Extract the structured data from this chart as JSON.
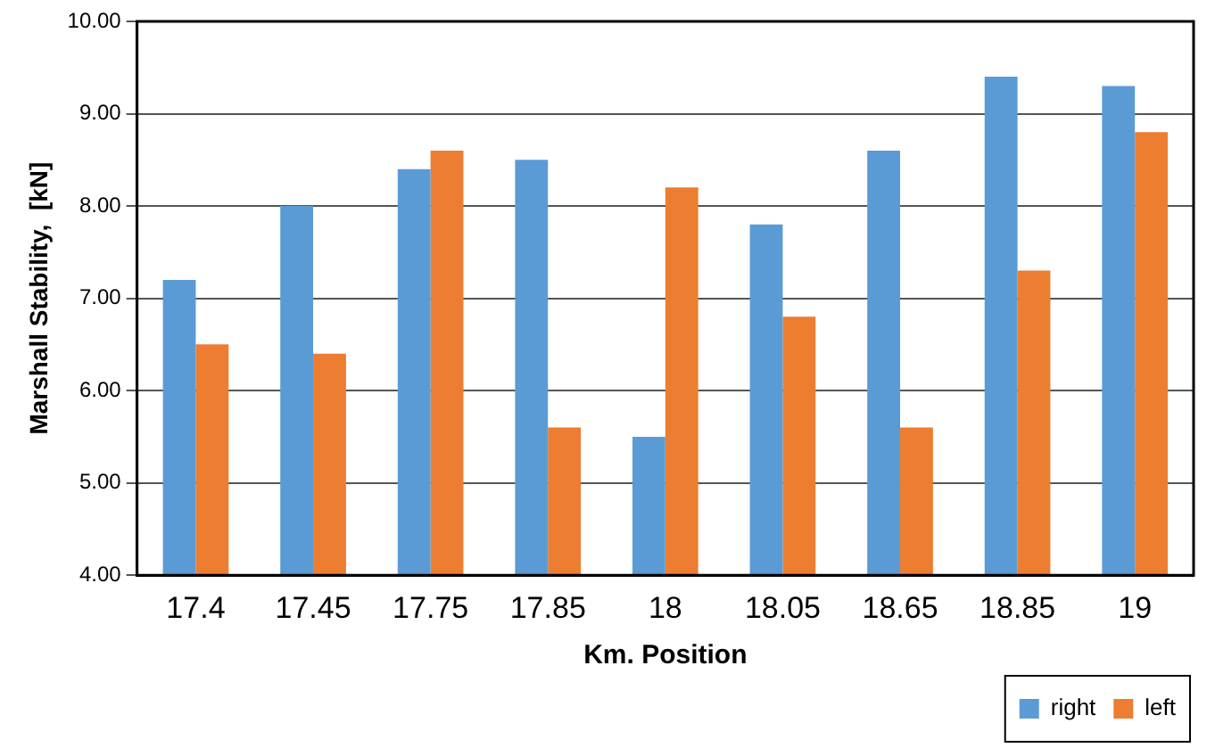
{
  "chart_data": {
    "type": "bar",
    "xlabel": "Km. Position",
    "ylabel": "Marshall Stability,  [kN]",
    "categories": [
      "17.4",
      "17.45",
      "17.75",
      "17.85",
      "18",
      "18.05",
      "18.65",
      "18.85",
      "19"
    ],
    "series": [
      {
        "name": "right",
        "color": "#5b9bd5",
        "values": [
          7.2,
          8.0,
          8.4,
          8.5,
          5.5,
          7.8,
          8.6,
          9.4,
          9.3
        ]
      },
      {
        "name": "left",
        "color": "#ed7d31",
        "values": [
          6.5,
          6.4,
          8.6,
          5.6,
          8.2,
          6.8,
          5.6,
          7.3,
          8.8
        ]
      }
    ],
    "ylim": [
      4,
      10
    ],
    "yticks": [
      {
        "value": 4,
        "label": "4.00"
      },
      {
        "value": 5,
        "label": "5.00"
      },
      {
        "value": 6,
        "label": "6.00"
      },
      {
        "value": 7,
        "label": "7.00"
      },
      {
        "value": 8,
        "label": "8.00"
      },
      {
        "value": 9,
        "label": "9.00"
      },
      {
        "value": 10,
        "label": "10.00"
      }
    ],
    "grid": "y",
    "legend": "bottom right"
  }
}
